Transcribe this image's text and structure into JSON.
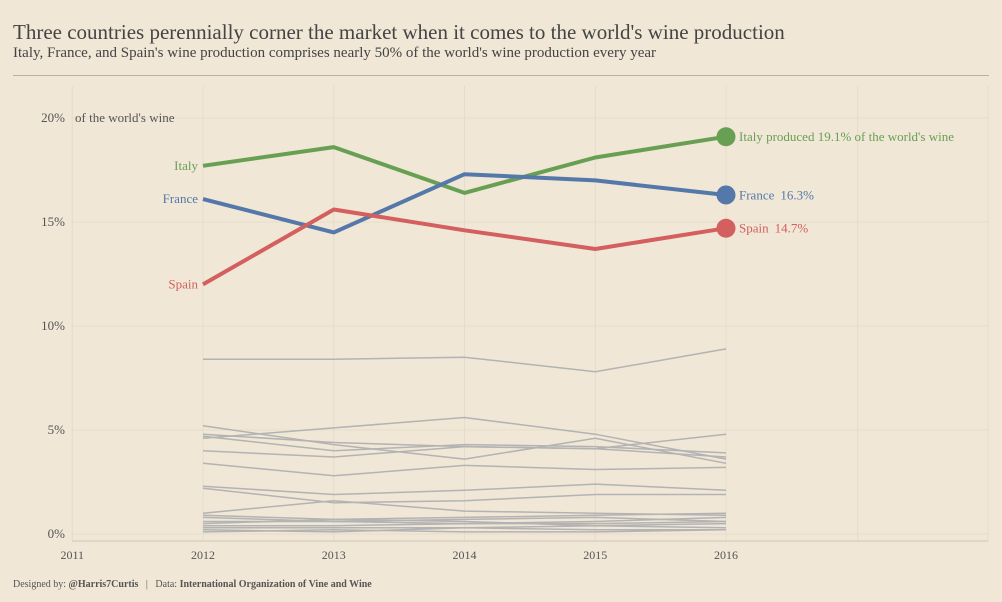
{
  "header": {
    "title": "Three countries perennially corner the market when it comes to the world's wine production",
    "subtitle": "Italy, France, and Spain's wine production comprises nearly 50% of the world's wine production every year"
  },
  "footer": {
    "designed_label": "Designed by:",
    "designed_by": "@Harris7Curtis",
    "separator": "|",
    "data_label": "Data:",
    "data_source": "International Organization of Vine and Wine"
  },
  "chart_data": {
    "type": "line",
    "x_ticks": [
      "2011",
      "2012",
      "2013",
      "2014",
      "2015",
      "2016"
    ],
    "x": [
      2012,
      2013,
      2014,
      2015,
      2016
    ],
    "y_ticks": [
      "0%",
      "5%",
      "10%",
      "15%",
      "20%"
    ],
    "y_unit_label": "of the world's wine",
    "ylim": [
      0,
      20
    ],
    "grid": true,
    "highlighted": [
      {
        "name": "Italy",
        "color": "#68a053",
        "values": [
          17.7,
          18.6,
          16.4,
          18.1,
          19.1
        ],
        "end_label": "Italy produced 19.1% of the world's wine"
      },
      {
        "name": "France",
        "color": "#5478a9",
        "values": [
          16.1,
          14.5,
          17.3,
          17.0,
          16.3
        ],
        "end_label": "France",
        "end_value": "16.3%"
      },
      {
        "name": "Spain",
        "color": "#d35f5e",
        "values": [
          12.0,
          15.6,
          14.6,
          13.7,
          14.7
        ],
        "end_label": "Spain",
        "end_value": "14.7%"
      }
    ],
    "other_color": "#b3b3b3",
    "other_series": [
      [
        8.4,
        8.4,
        8.5,
        7.8,
        8.9
      ],
      [
        5.2,
        4.3,
        3.6,
        4.6,
        3.4
      ],
      [
        4.8,
        4.4,
        4.2,
        4.1,
        4.8
      ],
      [
        4.6,
        5.1,
        5.6,
        4.8,
        3.6
      ],
      [
        4.7,
        4.0,
        4.3,
        4.2,
        3.9
      ],
      [
        4.0,
        3.7,
        4.2,
        4.1,
        3.7
      ],
      [
        3.4,
        2.8,
        3.3,
        3.1,
        3.2
      ],
      [
        2.3,
        1.9,
        2.1,
        2.4,
        2.1
      ],
      [
        2.2,
        1.5,
        1.6,
        1.9,
        1.9
      ],
      [
        1.0,
        1.6,
        1.1,
        1.0,
        0.9
      ],
      [
        0.9,
        0.7,
        0.8,
        0.9,
        1.0
      ],
      [
        0.8,
        0.6,
        0.7,
        0.8,
        0.6
      ],
      [
        0.6,
        0.6,
        0.5,
        0.6,
        0.8
      ],
      [
        0.5,
        0.7,
        0.6,
        0.4,
        0.5
      ],
      [
        0.4,
        0.4,
        0.5,
        0.5,
        0.6
      ],
      [
        0.3,
        0.3,
        0.3,
        0.4,
        0.3
      ],
      [
        0.2,
        0.1,
        0.3,
        0.2,
        0.2
      ],
      [
        0.1,
        0.2,
        0.1,
        0.1,
        0.2
      ]
    ]
  }
}
